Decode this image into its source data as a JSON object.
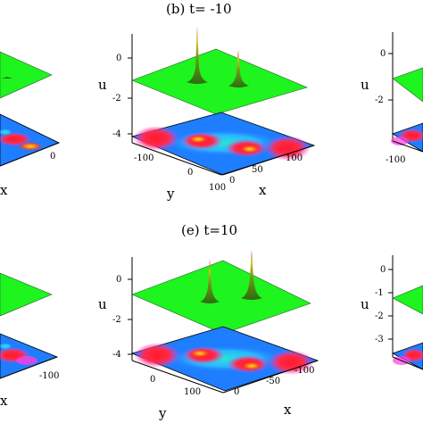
{
  "chart_data": [
    {
      "panel": "a",
      "type": "surface",
      "title": "",
      "xlabel": "x",
      "ylabel": "",
      "zlabel": "",
      "z_ticks": [],
      "x_ticks": [
        "0"
      ],
      "y_ticks": []
    },
    {
      "panel": "b",
      "type": "surface",
      "title": "(b) t= -10",
      "xlabel": "x",
      "ylabel": "y",
      "zlabel": "u",
      "z_ticks": [
        "0",
        "-2",
        "-4"
      ],
      "x_ticks": [
        "0",
        "50",
        "100"
      ],
      "y_ticks": [
        "-100",
        "0",
        "100"
      ]
    },
    {
      "panel": "c",
      "type": "surface",
      "title": "",
      "xlabel": "",
      "ylabel": "",
      "zlabel": "u",
      "z_ticks": [
        "0",
        "-2"
      ],
      "x_ticks": [
        "-100"
      ],
      "y_ticks": []
    },
    {
      "panel": "d",
      "type": "surface",
      "title": "",
      "xlabel": "x",
      "ylabel": "",
      "zlabel": "",
      "z_ticks": [],
      "x_ticks": [
        "-100"
      ],
      "y_ticks": []
    },
    {
      "panel": "e",
      "type": "surface",
      "title": "(e) t=10",
      "xlabel": "x",
      "ylabel": "y",
      "zlabel": "u",
      "z_ticks": [
        "0",
        "-2",
        "-4"
      ],
      "x_ticks": [
        "0",
        "-50",
        "-100"
      ],
      "y_ticks": [
        "0",
        "100"
      ]
    },
    {
      "panel": "f",
      "type": "surface",
      "title": "",
      "xlabel": "",
      "ylabel": "",
      "zlabel": "u",
      "z_ticks": [
        "0",
        "-1",
        "-2",
        "-3"
      ],
      "x_ticks": [],
      "y_ticks": []
    }
  ],
  "colors": {
    "surface_green": "#1ef41e",
    "surface_edge": "#2f5f2f",
    "peak_dark": "#2c6d10",
    "peak_yellow": "#d9c21f",
    "peak_red": "#d0281a",
    "map_blue": "#1f7dff",
    "map_red": "#ff1a2a",
    "map_yellow": "#ffe021",
    "map_cyan": "#24e6d6",
    "map_magenta": "#ff3de0"
  }
}
